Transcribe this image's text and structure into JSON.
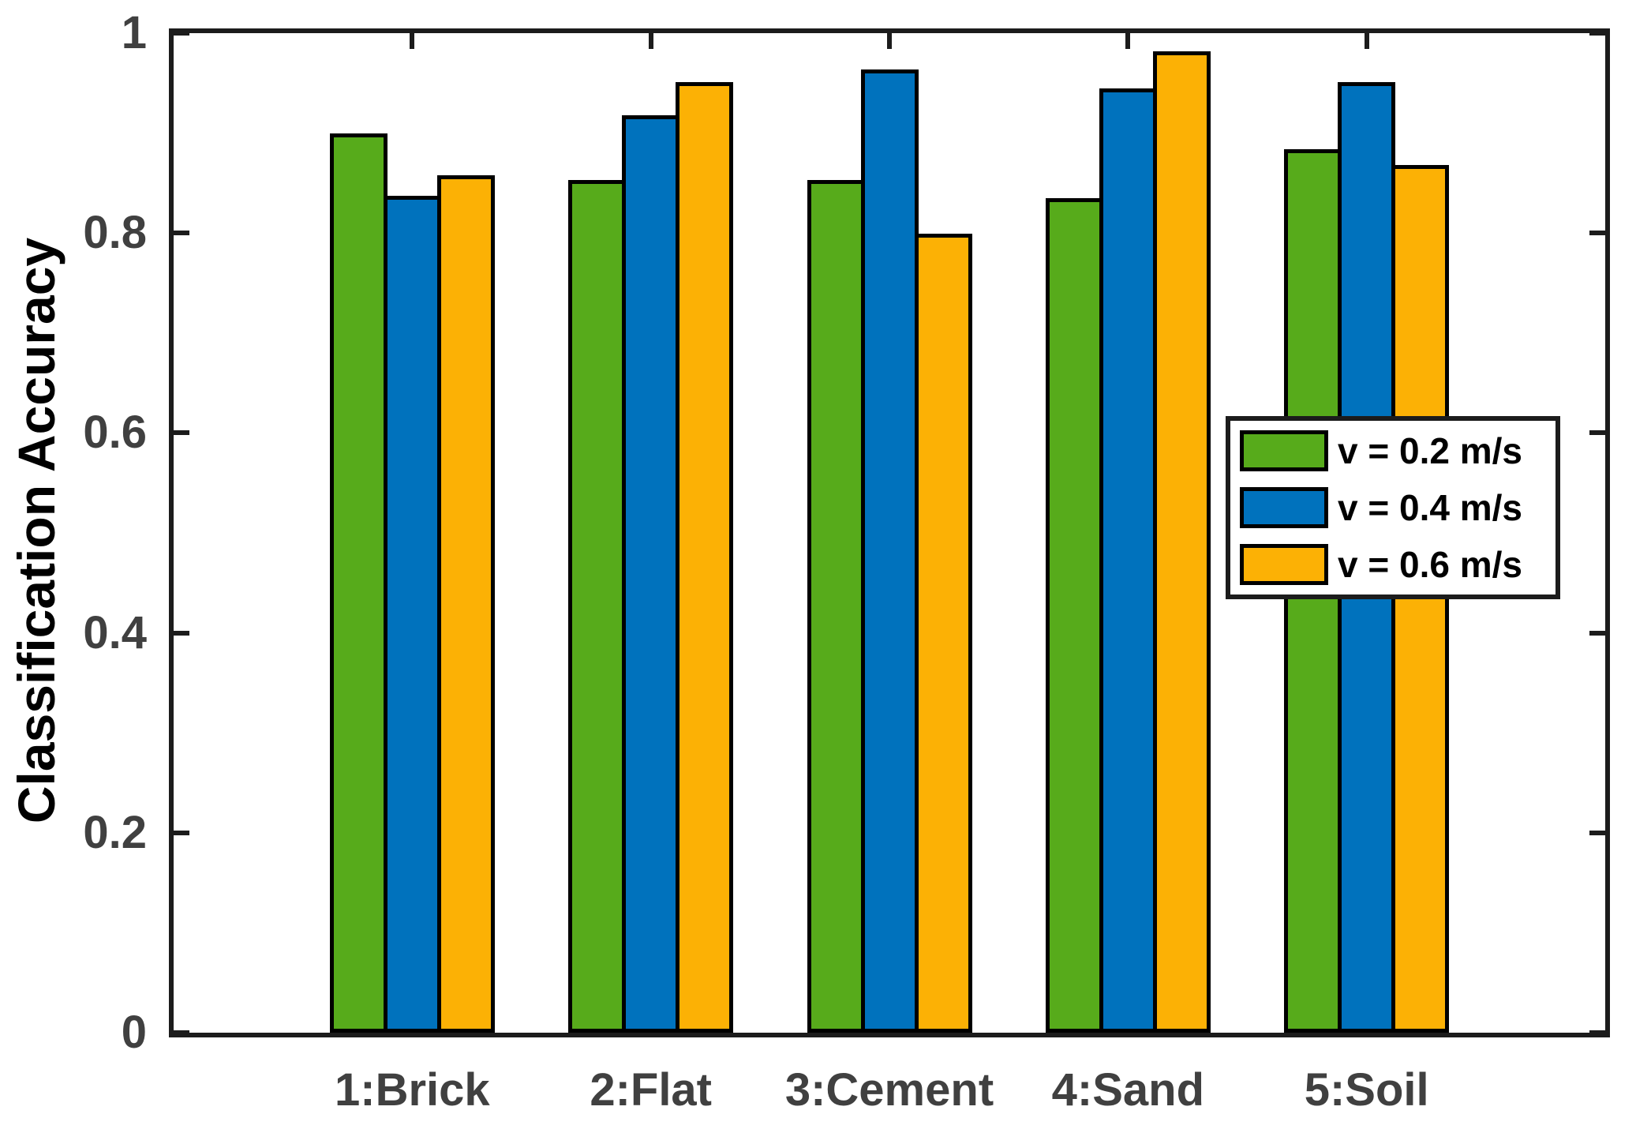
{
  "figure": {
    "background": "#FFFFFF",
    "axis_color": "#1C1C1C",
    "tick_label_color": "#404040"
  },
  "chart_data": {
    "type": "bar",
    "title": "",
    "xlabel": "",
    "ylabel": "Classification Accuracy",
    "categories": [
      "1:Brick",
      "2:Flat",
      "3:Cement",
      "4:Sand",
      "5:Soil"
    ],
    "series": [
      {
        "name": "v = 0.2 m/s",
        "color": "#57AB1B",
        "values": [
          0.9,
          0.853,
          0.853,
          0.835,
          0.884
        ]
      },
      {
        "name": "v = 0.4 m/s",
        "color": "#0072BD",
        "values": [
          0.837,
          0.918,
          0.964,
          0.945,
          0.951
        ]
      },
      {
        "name": "v = 0.6 m/s",
        "color": "#FCB105",
        "values": [
          0.858,
          0.951,
          0.799,
          0.982,
          0.868
        ]
      }
    ],
    "ylim": [
      0,
      1
    ],
    "xlim": [
      0,
      6
    ],
    "yticks": [
      0,
      0.2,
      0.4,
      0.6,
      0.8,
      1
    ],
    "ytick_labels": [
      "0",
      "0.2",
      "0.4",
      "0.6",
      "0.8",
      "1"
    ],
    "bar_edge_color": "#000000",
    "grid": false,
    "legend": {
      "position": "middle-right",
      "entries": [
        "v = 0.2 m/s",
        "v = 0.4 m/s",
        "v = 0.6 m/s"
      ]
    }
  }
}
